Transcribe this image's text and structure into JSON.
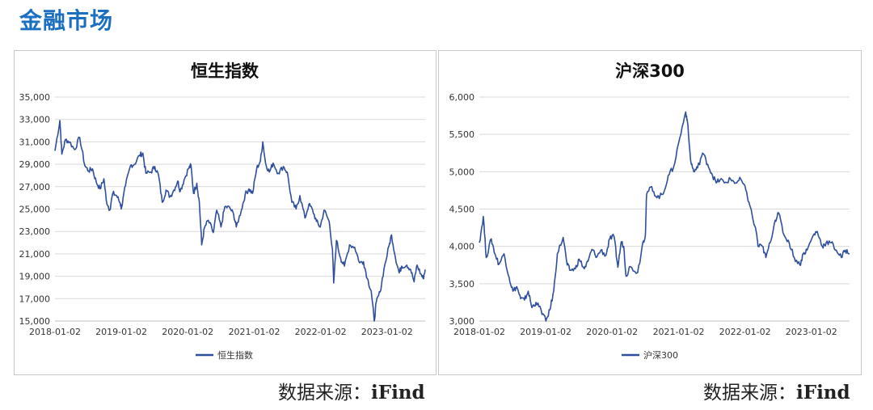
{
  "page": {
    "title": "金融市场"
  },
  "charts": [
    {
      "id": "hsi",
      "source_label": "数据来源：",
      "source_name": "iFind"
    },
    {
      "id": "csi300",
      "source_label": "数据来源：",
      "source_name": "iFind"
    }
  ],
  "chart_data": [
    {
      "type": "line",
      "title": "恒生指数",
      "xlabel": "",
      "ylabel": "",
      "ylim": [
        15000,
        35000
      ],
      "yticks": [
        15000,
        17000,
        19000,
        21000,
        23000,
        25000,
        27000,
        29000,
        31000,
        33000,
        35000
      ],
      "ytick_labels": [
        "15,000",
        "17,000",
        "19,000",
        "21,000",
        "23,000",
        "25,000",
        "27,000",
        "29,000",
        "31,000",
        "33,000",
        "35,000"
      ],
      "xlim": [
        "2018-01-02",
        "2023-07-31"
      ],
      "xtick_labels": [
        "2018-01-02",
        "2019-01-02",
        "2020-01-02",
        "2021-01-02",
        "2022-01-02",
        "2023-01-02"
      ],
      "grid": true,
      "legend": "bottom",
      "color": "#2e4f9b",
      "series": [
        {
          "name": "恒生指数",
          "x": [
            "2018-01-02",
            "2018-01-29",
            "2018-02-09",
            "2018-03-01",
            "2018-03-23",
            "2018-04-20",
            "2018-05-18",
            "2018-06-15",
            "2018-07-06",
            "2018-07-27",
            "2018-08-17",
            "2018-09-07",
            "2018-09-28",
            "2018-10-11",
            "2018-10-30",
            "2018-11-16",
            "2018-12-07",
            "2018-12-27",
            "2019-01-03",
            "2019-01-25",
            "2019-02-22",
            "2019-03-15",
            "2019-04-12",
            "2019-04-30",
            "2019-05-17",
            "2019-06-14",
            "2019-07-05",
            "2019-07-26",
            "2019-08-15",
            "2019-09-05",
            "2019-09-27",
            "2019-10-18",
            "2019-11-08",
            "2019-11-22",
            "2019-12-13",
            "2020-01-06",
            "2020-01-20",
            "2020-02-03",
            "2020-02-21",
            "2020-03-06",
            "2020-03-19",
            "2020-04-03",
            "2020-04-24",
            "2020-05-22",
            "2020-06-10",
            "2020-07-03",
            "2020-07-24",
            "2020-08-21",
            "2020-09-11",
            "2020-09-25",
            "2020-10-23",
            "2020-11-13",
            "2020-12-04",
            "2020-12-24",
            "2021-01-15",
            "2021-02-05",
            "2021-02-18",
            "2021-03-05",
            "2021-03-26",
            "2021-04-16",
            "2021-05-14",
            "2021-06-11",
            "2021-07-02",
            "2021-07-28",
            "2021-08-20",
            "2021-09-10",
            "2021-10-08",
            "2021-10-29",
            "2021-11-19",
            "2021-12-10",
            "2021-12-31",
            "2022-01-21",
            "2022-02-18",
            "2022-03-08",
            "2022-03-15",
            "2022-03-30",
            "2022-04-22",
            "2022-05-13",
            "2022-06-10",
            "2022-07-08",
            "2022-08-05",
            "2022-08-26",
            "2022-09-16",
            "2022-10-07",
            "2022-10-24",
            "2022-11-04",
            "2022-11-25",
            "2022-12-16",
            "2023-01-13",
            "2023-01-27",
            "2023-02-17",
            "2023-03-10",
            "2023-03-24",
            "2023-04-21",
            "2023-05-12",
            "2023-05-31",
            "2023-06-16",
            "2023-07-07",
            "2023-07-20",
            "2023-07-31"
          ],
          "values": [
            30200,
            32900,
            29900,
            31200,
            31000,
            30300,
            31400,
            28900,
            28400,
            28600,
            27400,
            26800,
            27700,
            25800,
            24900,
            26400,
            26200,
            25500,
            25100,
            27100,
            28900,
            29000,
            29800,
            30000,
            28200,
            28300,
            28800,
            28000,
            25600,
            26700,
            26100,
            26700,
            27500,
            26600,
            27600,
            28600,
            28900,
            26400,
            27300,
            25600,
            21800,
            23300,
            24000,
            22900,
            24900,
            23400,
            25200,
            25100,
            24500,
            23400,
            24900,
            26300,
            26800,
            26400,
            28600,
            29300,
            31000,
            29100,
            28300,
            29100,
            28200,
            28800,
            28300,
            25600,
            25000,
            26200,
            24200,
            25400,
            24900,
            23900,
            23400,
            24900,
            23900,
            21400,
            18400,
            22200,
            20600,
            19900,
            21800,
            21600,
            20200,
            20300,
            18800,
            17700,
            15000,
            16700,
            17600,
            19600,
            21700,
            22700,
            20700,
            19300,
            19900,
            20000,
            19600,
            18500,
            20000,
            19200,
            18800,
            19600
          ]
        }
      ]
    },
    {
      "type": "line",
      "title": "沪深300",
      "xlabel": "",
      "ylabel": "",
      "ylim": [
        3000,
        6000
      ],
      "yticks": [
        3000,
        3500,
        4000,
        4500,
        5000,
        5500,
        6000
      ],
      "ytick_labels": [
        "3,000",
        "3,500",
        "4,000",
        "4,500",
        "5,000",
        "5,500",
        "6,000"
      ],
      "xlim": [
        "2018-01-02",
        "2023-07-31"
      ],
      "xtick_labels": [
        "2018-01-02",
        "2019-01-02",
        "2020-01-02",
        "2021-01-02",
        "2022-01-02",
        "2023-01-02"
      ],
      "grid": true,
      "legend": "bottom",
      "color": "#2e4f9b",
      "series": [
        {
          "name": "沪深300",
          "x": [
            "2018-01-02",
            "2018-01-24",
            "2018-02-09",
            "2018-03-09",
            "2018-03-29",
            "2018-04-20",
            "2018-05-18",
            "2018-06-15",
            "2018-07-06",
            "2018-07-27",
            "2018-08-17",
            "2018-09-07",
            "2018-09-28",
            "2018-10-18",
            "2018-11-09",
            "2018-12-07",
            "2019-01-03",
            "2019-01-25",
            "2019-02-15",
            "2019-03-07",
            "2019-04-08",
            "2019-04-30",
            "2019-05-17",
            "2019-06-14",
            "2019-07-05",
            "2019-08-02",
            "2019-08-23",
            "2019-09-13",
            "2019-10-11",
            "2019-11-01",
            "2019-11-29",
            "2019-12-20",
            "2020-01-13",
            "2020-02-03",
            "2020-02-21",
            "2020-03-06",
            "2020-03-19",
            "2020-04-10",
            "2020-05-22",
            "2020-06-19",
            "2020-07-03",
            "2020-07-10",
            "2020-08-07",
            "2020-09-04",
            "2020-10-09",
            "2020-11-06",
            "2020-12-04",
            "2021-01-08",
            "2021-02-10",
            "2021-02-18",
            "2021-03-09",
            "2021-03-26",
            "2021-04-16",
            "2021-05-14",
            "2021-06-11",
            "2021-07-02",
            "2021-07-28",
            "2021-08-20",
            "2021-09-10",
            "2021-10-15",
            "2021-11-12",
            "2021-12-10",
            "2022-01-07",
            "2022-01-28",
            "2022-03-08",
            "2022-03-15",
            "2022-04-08",
            "2022-04-27",
            "2022-05-20",
            "2022-06-17",
            "2022-07-05",
            "2022-08-05",
            "2022-09-02",
            "2022-09-30",
            "2022-10-31",
            "2022-11-18",
            "2022-12-09",
            "2023-01-13",
            "2023-02-03",
            "2023-03-03",
            "2023-03-24",
            "2023-04-21",
            "2023-05-19",
            "2023-06-16",
            "2023-07-07",
            "2023-07-31"
          ],
          "values": [
            4050,
            4400,
            3850,
            4100,
            3900,
            3760,
            3900,
            3580,
            3400,
            3460,
            3300,
            3280,
            3400,
            3180,
            3250,
            3150,
            3000,
            3150,
            3400,
            3900,
            4120,
            3750,
            3680,
            3700,
            3830,
            3700,
            3800,
            3960,
            3860,
            3950,
            3880,
            4100,
            4130,
            3720,
            4060,
            4000,
            3600,
            3730,
            3650,
            4050,
            4150,
            4700,
            4800,
            4650,
            4700,
            4950,
            5050,
            5450,
            5800,
            5700,
            5150,
            5000,
            5050,
            5250,
            5100,
            4980,
            4850,
            4900,
            4850,
            4900,
            4850,
            4900,
            4750,
            4550,
            4150,
            4000,
            4000,
            3850,
            4050,
            4350,
            4450,
            4150,
            4050,
            3850,
            3750,
            3900,
            3950,
            4150,
            4200,
            4000,
            4050,
            4050,
            3950,
            3850,
            3950,
            3900
          ]
        }
      ]
    }
  ]
}
